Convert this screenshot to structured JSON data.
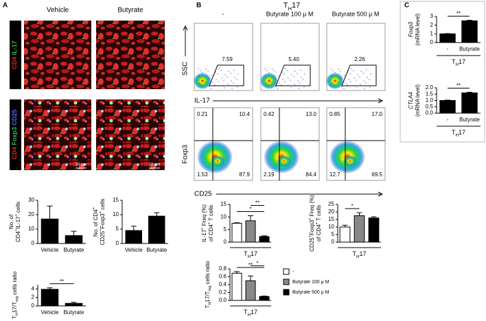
{
  "panels": {
    "a": "A",
    "b": "B",
    "c": "C"
  },
  "microscopy": {
    "columns": [
      "Vehicle",
      "Butyrate"
    ],
    "rows": [
      [
        {
          "text": "CD4",
          "color": "#e52521"
        },
        " ",
        {
          "text": "IL-17",
          "color": "#39b54a"
        }
      ],
      [
        {
          "text": "CD4",
          "color": "#e52521"
        },
        " ",
        {
          "text": "Foxp3",
          "color": "#39b54a"
        },
        " ",
        {
          "text": "CD25",
          "color": "#4a6cf0"
        }
      ]
    ],
    "scale_label": "10 μm"
  },
  "flow": {
    "title": [
      "T",
      {
        "text": "H",
        "sub": true
      },
      "17"
    ],
    "columns": [
      "-",
      "Butyrate 100 μ M",
      "Butyrate 500 μ M"
    ],
    "row1_y": "SSC",
    "row1_x": "IL-17",
    "row2_y": "Foxp3",
    "row2_x": "CD25",
    "gates": [
      "7.59",
      "5.40",
      "2.26"
    ],
    "quadrants": [
      [
        "0.21",
        "10.4",
        "1.53",
        "87.9"
      ],
      [
        "0.42",
        "13.0",
        "2.19",
        "84.4"
      ],
      [
        "0.85",
        "17.0",
        "12.7",
        "69.5"
      ]
    ]
  },
  "chart_data": [
    {
      "type": "bar",
      "ylabel": [
        [
          "No. of"
        ],
        [
          "CD4",
          {
            "text": "+",
            "sup": true
          },
          "IL-17",
          {
            "text": "+",
            "sup": true
          },
          " cells"
        ]
      ],
      "categories": [
        "Vehicle",
        "Butyrate"
      ],
      "values": [
        17,
        5.5
      ],
      "errors": [
        9,
        3
      ],
      "colors": [
        "#000000",
        "#000000"
      ],
      "ylim": [
        0,
        30
      ],
      "yticks": [
        0,
        10,
        20,
        30
      ]
    },
    {
      "type": "bar",
      "ylabel": [
        [
          "No. of CD4",
          {
            "text": "+",
            "sup": true
          }
        ],
        [
          "CD25",
          {
            "text": "+",
            "sup": true
          },
          "Foxp3",
          {
            "text": "+",
            "sup": true
          },
          " cells"
        ]
      ],
      "categories": [
        "Vehicle",
        "Butyrate"
      ],
      "values": [
        4.5,
        9.5
      ],
      "errors": [
        1.5,
        1.2
      ],
      "colors": [
        "#000000",
        "#000000"
      ],
      "ylim": [
        0,
        15
      ],
      "yticks": [
        0,
        5,
        10,
        15
      ]
    },
    {
      "type": "bar",
      "ylabel": [
        [
          "T",
          {
            "text": "H",
            "sub": true
          },
          "17/T",
          {
            "text": "reg",
            "sub": true
          },
          " cells ratio"
        ]
      ],
      "categories": [
        "Vehicle",
        "Butyrate"
      ],
      "values": [
        3.9,
        0.6
      ],
      "errors": [
        0.35,
        0.25
      ],
      "colors": [
        "#000000",
        "#000000"
      ],
      "ylim": [
        0,
        5
      ],
      "yticks": [
        0,
        2,
        4
      ],
      "significance": [
        {
          "label": "**",
          "from": 0,
          "to": 1
        }
      ]
    },
    {
      "type": "bar",
      "ylabel": [
        [
          "IL-17",
          {
            "text": "+",
            "sup": true
          },
          " Freq (%)"
        ],
        [
          "of CD4",
          {
            "text": "+",
            "sup": true
          },
          " T cells"
        ]
      ],
      "categories": [
        null,
        null,
        null
      ],
      "values": [
        7.5,
        8.5,
        2.2
      ],
      "errors": [
        0.2,
        2,
        0.3
      ],
      "colors": [
        "#ffffff",
        "#888888",
        "#000000"
      ],
      "ylim": [
        0,
        15
      ],
      "yticks": [
        0,
        5,
        10,
        15
      ],
      "xlabel": [
        "T",
        {
          "text": "H",
          "sub": true
        },
        "17"
      ],
      "significance": [
        {
          "label": "*",
          "from": 0,
          "to": 2
        },
        {
          "label": "**",
          "from": 1,
          "to": 2
        }
      ]
    },
    {
      "type": "bar",
      "ylabel": [
        [
          "CD25",
          {
            "text": "+",
            "sup": true
          },
          "Foxp3",
          {
            "text": "+",
            "sup": true
          },
          " Freq (%)"
        ],
        [
          "of CD4",
          {
            "text": "+",
            "sup": true
          },
          " T cells"
        ]
      ],
      "categories": [
        null,
        null,
        null
      ],
      "values": [
        10,
        17.5,
        16
      ],
      "errors": [
        1.2,
        2,
        0.8
      ],
      "colors": [
        "#ffffff",
        "#888888",
        "#000000"
      ],
      "ylim": [
        0,
        25
      ],
      "yticks": [
        0,
        5,
        10,
        15,
        20,
        25
      ],
      "xlabel": [
        "T",
        {
          "text": "H",
          "sub": true
        },
        "17"
      ],
      "significance": [
        {
          "label": "*",
          "from": 0,
          "to": 1
        }
      ]
    },
    {
      "type": "bar",
      "ylabel": [
        [
          "T",
          {
            "text": "H",
            "sub": true
          },
          "17/T",
          {
            "text": "reg",
            "sub": true
          },
          " cells ratio"
        ]
      ],
      "categories": [
        null,
        null,
        null
      ],
      "values": [
        0.69,
        0.5,
        0.1
      ],
      "errors": [
        0.04,
        0.12,
        0.01
      ],
      "colors": [
        "#ffffff",
        "#888888",
        "#000000"
      ],
      "ylim": [
        0,
        0.8
      ],
      "yticks": [
        {
          "value": 0,
          "label": "0.0"
        },
        0.2,
        0.4,
        0.6,
        0.8
      ],
      "xlabel": [
        "T",
        {
          "text": "H",
          "sub": true
        },
        "17"
      ],
      "significance": [
        {
          "label": "**",
          "from": 0,
          "to": 2
        },
        {
          "label": "*",
          "from": 1,
          "to": 2
        }
      ],
      "legend": [
        "-",
        "Butyrate 100 μ M",
        "Butyrate 500 μ M"
      ]
    },
    {
      "type": "bar",
      "ylabel": [
        [
          {
            "text": "Foxp3",
            "italic": true
          }
        ],
        [
          "(mRNA level)"
        ]
      ],
      "categories": [
        "-",
        "Butyrate"
      ],
      "values": [
        1,
        2.5
      ],
      "errors": [
        0.03,
        0.06
      ],
      "colors": [
        "#000000",
        "#000000"
      ],
      "ylim": [
        0,
        3
      ],
      "yticks": [
        0,
        1,
        2,
        3
      ],
      "xlabel": [
        "T",
        {
          "text": "H",
          "sub": true
        },
        "17"
      ],
      "significance": [
        {
          "label": "**",
          "from": 0,
          "to": 1
        }
      ]
    },
    {
      "type": "bar",
      "ylabel": [
        [
          {
            "text": "CTLA4",
            "italic": true
          }
        ],
        [
          "(mRNA level)"
        ]
      ],
      "categories": [
        "-",
        "Butyrate"
      ],
      "values": [
        1,
        1.6
      ],
      "errors": [
        0.03,
        0.05
      ],
      "colors": [
        "#000000",
        "#000000"
      ],
      "ylim": [
        0,
        2
      ],
      "yticks": [
        {
          "value": 0,
          "label": "0.0"
        },
        0.5,
        {
          "value": 1,
          "label": "1.0"
        },
        1.5,
        {
          "value": 2,
          "label": "2.0"
        }
      ],
      "xlabel": [
        "T",
        {
          "text": "H",
          "sub": true
        },
        "17"
      ],
      "significance": [
        {
          "label": "**",
          "from": 0,
          "to": 1
        }
      ]
    }
  ]
}
